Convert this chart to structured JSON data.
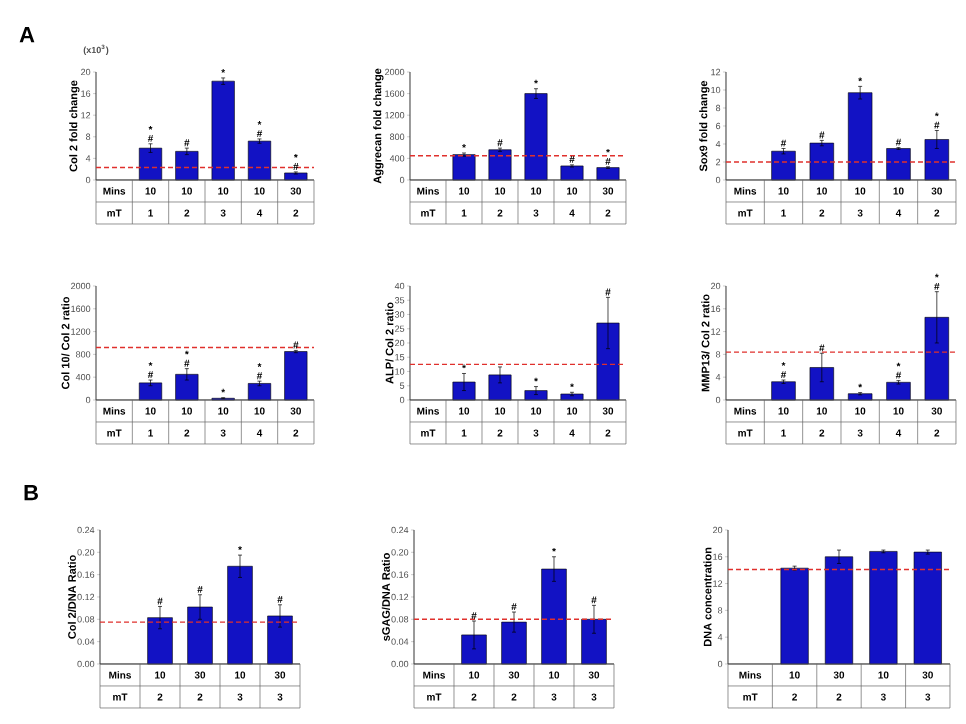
{
  "chart_data": [
    {
      "type": "bar",
      "title": "A",
      "ylabel": "Col 2 fold change",
      "categories": [
        "10",
        "10",
        "10",
        "10",
        "30"
      ],
      "values": [
        5.9,
        5.3,
        18.3,
        7.2,
        1.3
      ],
      "errors": [
        0.8,
        0.6,
        0.6,
        0.4,
        0.2
      ],
      "value_labels": [
        "* #",
        "#",
        "*",
        "* #",
        "* #"
      ],
      "color": "#1212c4",
      "ylim": [
        0,
        20
      ],
      "yticks": [
        0,
        4,
        8,
        12,
        16,
        20
      ],
      "ref_lines": [
        {
          "axis": "y",
          "value": 2.3,
          "color": "#e0302c",
          "line_style": "dashed"
        }
      ],
      "annotations": [
        "Mins",
        "mT",
        "1",
        "2",
        "3",
        "4",
        "2",
        "(x10$^{3}$)"
      ]
    },
    {
      "type": "bar",
      "ylabel": "Aggrecan fold change",
      "categories": [
        "10",
        "10",
        "10",
        "10",
        "30"
      ],
      "values": [
        470,
        560,
        1600,
        260,
        230
      ],
      "errors": [
        30,
        30,
        90,
        20,
        15
      ],
      "value_labels": [
        "*",
        "#",
        "*",
        "#",
        "* #"
      ],
      "color": "#1212c4",
      "ylim": [
        0,
        2000
      ],
      "yticks": [
        0,
        400,
        800,
        1200,
        1600,
        2000
      ],
      "ref_lines": [
        {
          "axis": "y",
          "value": 450,
          "color": "#e0302c",
          "line_style": "dashed"
        }
      ],
      "annotations": [
        "Mins",
        "mT",
        "1",
        "2",
        "3",
        "4",
        "2"
      ]
    },
    {
      "type": "bar",
      "ylabel": "Sox9 fold change",
      "categories": [
        "10",
        "10",
        "10",
        "10",
        "30"
      ],
      "values": [
        3.2,
        4.1,
        9.7,
        3.5,
        4.5
      ],
      "errors": [
        0.3,
        0.3,
        0.7,
        0.1,
        1.0
      ],
      "value_labels": [
        "#",
        "#",
        "*",
        "#",
        "* #"
      ],
      "color": "#1212c4",
      "ylim": [
        0,
        12
      ],
      "yticks": [
        0,
        2,
        4,
        6,
        8,
        10,
        12
      ],
      "ref_lines": [
        {
          "axis": "y",
          "value": 2.0,
          "color": "#e0302c",
          "line_style": "dashed"
        }
      ],
      "annotations": [
        "Mins",
        "mT",
        "1",
        "2",
        "3",
        "4",
        "2"
      ]
    },
    {
      "type": "bar",
      "ylabel": "Col 10/ Col 2 ratio",
      "categories": [
        "10",
        "10",
        "10",
        "10",
        "30"
      ],
      "values": [
        300,
        450,
        30,
        290,
        850
      ],
      "errors": [
        50,
        100,
        10,
        40,
        20
      ],
      "value_labels": [
        "* #",
        "* #",
        "*",
        "* #",
        "#"
      ],
      "color": "#1212c4",
      "ylim": [
        0,
        2000
      ],
      "yticks": [
        0,
        400,
        800,
        1200,
        1600,
        2000
      ],
      "ref_lines": [
        {
          "axis": "y",
          "value": 920,
          "color": "#e0302c",
          "line_style": "dashed"
        }
      ],
      "annotations": [
        "Mins",
        "mT",
        "1",
        "2",
        "3",
        "4",
        "2"
      ]
    },
    {
      "type": "bar",
      "ylabel": "ALP/ Col 2 ratio",
      "categories": [
        "10",
        "10",
        "10",
        "10",
        "30"
      ],
      "values": [
        6.3,
        8.8,
        3.3,
        2.1,
        27
      ],
      "errors": [
        3,
        2.8,
        1.4,
        0.6,
        9
      ],
      "value_labels": [
        "*",
        null,
        "*",
        "*",
        "#"
      ],
      "color": "#1212c4",
      "ylim": [
        0,
        40
      ],
      "yticks": [
        0,
        5,
        10,
        15,
        20,
        25,
        30,
        35,
        40
      ],
      "ref_lines": [
        {
          "axis": "y",
          "value": 12.5,
          "color": "#e0302c",
          "line_style": "dashed"
        }
      ],
      "annotations": [
        "Mins",
        "mT",
        "1",
        "2",
        "3",
        "4",
        "2"
      ]
    },
    {
      "type": "bar",
      "ylabel": "MMP13/ Col 2 ratio",
      "categories": [
        "10",
        "10",
        "10",
        "10",
        "30"
      ],
      "values": [
        3.2,
        5.7,
        1.1,
        3.1,
        14.5
      ],
      "errors": [
        0.3,
        2.5,
        0.2,
        0.3,
        4.5
      ],
      "value_labels": [
        "* #",
        "#",
        "*",
        "* #",
        "* #"
      ],
      "color": "#1212c4",
      "ylim": [
        0,
        20
      ],
      "yticks": [
        0,
        4,
        8,
        12,
        16,
        20
      ],
      "ref_lines": [
        {
          "axis": "y",
          "value": 8.4,
          "color": "#e0302c",
          "line_style": "dashed"
        }
      ],
      "annotations": [
        "Mins",
        "mT",
        "1",
        "2",
        "3",
        "4",
        "2"
      ]
    },
    {
      "type": "bar",
      "title": "B",
      "ylabel": "Col 2/DNA Ratio",
      "categories": [
        "10",
        "30",
        "10",
        "30"
      ],
      "values": [
        0.083,
        0.102,
        0.175,
        0.086
      ],
      "errors": [
        0.02,
        0.022,
        0.02,
        0.02
      ],
      "value_labels": [
        "#",
        "#",
        "*",
        "#"
      ],
      "color": "#1212c4",
      "ylim": [
        0,
        0.24
      ],
      "yticks": [
        {
          "value": 0,
          "label": "0.00"
        },
        {
          "value": 0.04,
          "label": "0.04"
        },
        {
          "value": 0.08,
          "label": "0.08"
        },
        {
          "value": 0.12,
          "label": "0.12"
        },
        {
          "value": 0.16,
          "label": "0.16"
        },
        {
          "value": 0.2,
          "label": "0.20"
        },
        {
          "value": 0.24,
          "label": "0.24"
        }
      ],
      "ref_lines": [
        {
          "axis": "y",
          "value": 0.075,
          "color": "#e0302c",
          "line_style": "dashed"
        }
      ],
      "annotations": [
        "Mins",
        "mT",
        "2",
        "2",
        "3",
        "3"
      ]
    },
    {
      "type": "bar",
      "ylabel": "sGAG/DNA Ratio",
      "categories": [
        "10",
        "30",
        "10",
        "30"
      ],
      "values": [
        0.052,
        0.075,
        0.17,
        0.08
      ],
      "errors": [
        0.025,
        0.018,
        0.022,
        0.025
      ],
      "value_labels": [
        "#",
        "#",
        "*",
        "#"
      ],
      "color": "#1212c4",
      "ylim": [
        0,
        0.24
      ],
      "yticks": [
        {
          "value": 0,
          "label": "0.00"
        },
        {
          "value": 0.04,
          "label": "0.04"
        },
        {
          "value": 0.08,
          "label": "0.08"
        },
        {
          "value": 0.12,
          "label": "0.12"
        },
        {
          "value": 0.16,
          "label": "0.16"
        },
        {
          "value": 0.2,
          "label": "0.20"
        },
        {
          "value": 0.24,
          "label": "0.24"
        }
      ],
      "ref_lines": [
        {
          "axis": "y",
          "value": 0.08,
          "color": "#e0302c",
          "line_style": "dashed"
        }
      ],
      "annotations": [
        "Mins",
        "mT",
        "2",
        "2",
        "3",
        "3"
      ]
    },
    {
      "type": "bar",
      "ylabel": "DNA concentration",
      "categories": [
        "10",
        "30",
        "10",
        "30"
      ],
      "values": [
        14.3,
        16.0,
        16.8,
        16.7
      ],
      "errors": [
        0.3,
        1.0,
        0.2,
        0.3
      ],
      "color": "#1212c4",
      "ylim": [
        0,
        20
      ],
      "yticks": [
        0,
        4,
        8,
        12,
        16,
        20
      ],
      "ref_lines": [
        {
          "axis": "y",
          "value": 14.1,
          "color": "#e0302c",
          "line_style": "dashed"
        }
      ],
      "annotations": [
        "Mins",
        "mT",
        "2",
        "2",
        "3",
        "3"
      ]
    }
  ]
}
